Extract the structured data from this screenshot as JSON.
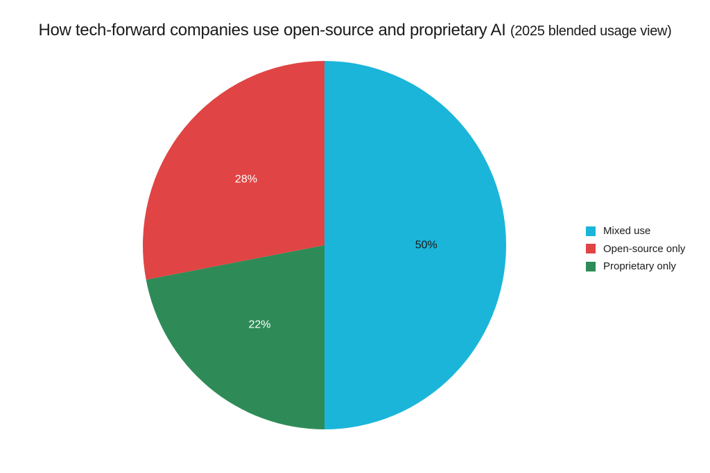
{
  "chart_data": {
    "type": "pie",
    "title": "How tech-forward companies use open-source and proprietary AI",
    "subtitle": "(2025 blended usage view)",
    "legend_position": "right",
    "start": "top",
    "direction": "clockwise",
    "slices": [
      {
        "name": "Mixed use",
        "value": 50,
        "label": "50%",
        "color": "#1bb5d9",
        "label_color": "#1a1a1a"
      },
      {
        "name": "Proprietary only",
        "value": 22,
        "label": "22%",
        "color": "#2e8b57",
        "label_color": "#ffffff"
      },
      {
        "name": "Open-source only",
        "value": 28,
        "label": "28%",
        "color": "#e04444",
        "label_color": "#ffffff"
      }
    ],
    "legend_order": [
      "Mixed use",
      "Open-source only",
      "Proprietary only"
    ]
  }
}
